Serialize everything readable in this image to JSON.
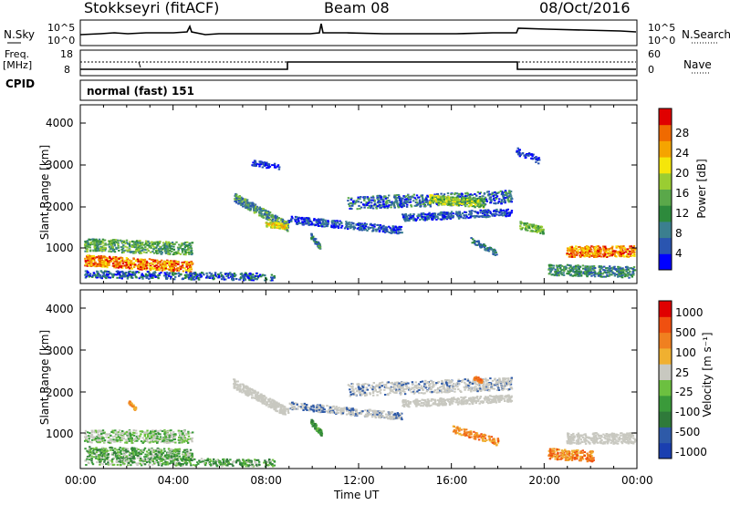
{
  "header": {
    "title": "Stokkseyri (fitACF)",
    "beam": "Beam 08",
    "date": "08/Oct/2016"
  },
  "summary": {
    "nsky_label": "N.Sky",
    "nsearch_label": "N.Search",
    "nsky_ticks": [
      "10^5",
      "10^0"
    ],
    "nsearch_ticks": [
      "10^5",
      "10^0"
    ],
    "freq_label": "Freq.",
    "freq_unit": "[MHz]",
    "freq_ticks": [
      "18",
      "8"
    ],
    "nave_label": "Nave",
    "nave_ticks": [
      "60",
      "0"
    ],
    "cpid_label": "CPID",
    "cpid_value": "normal (fast) 151"
  },
  "chart_data": [
    {
      "type": "heatmap",
      "panel": "power",
      "ylabel": "Slant Range [km]",
      "ylim": [
        180,
        4500
      ],
      "yticks": [
        "4000",
        "3000",
        "2000",
        "1000"
      ],
      "colorbar_label": "Power [dB]",
      "colorbar_ticks": [
        "28",
        "24",
        "20",
        "16",
        "12",
        "8",
        "4"
      ],
      "colors": [
        "#0000ff",
        "#2a55b0",
        "#3b7f8f",
        "#2d8a3c",
        "#5aa84a",
        "#9acd32",
        "#f5e60a",
        "#f5a400",
        "#f06a00",
        "#e00000"
      ],
      "xlim": [
        "00:00",
        "24:00"
      ]
    },
    {
      "type": "heatmap",
      "panel": "velocity",
      "ylabel": "Slant Range [km]",
      "ylim": [
        180,
        4500
      ],
      "yticks": [
        "4000",
        "3000",
        "2000",
        "1000"
      ],
      "colorbar_label": "Velocity [m s⁻¹]",
      "colorbar_ticks": [
        "1000",
        "500",
        "100",
        "25",
        "-25",
        "-100",
        "-500",
        "-1000"
      ],
      "colors": [
        "#1a3fb0",
        "#2e5aa8",
        "#2f7a3a",
        "#3a9a3a",
        "#6cc040",
        "#c8c8c0",
        "#f0b030",
        "#f08020",
        "#f05010",
        "#e00000"
      ],
      "xlim": [
        "00:00",
        "24:00"
      ]
    }
  ],
  "xaxis": {
    "ticks": [
      "00:00",
      "04:00",
      "08:00",
      "12:00",
      "16:00",
      "20:00",
      "00:00"
    ],
    "label": "Time UT"
  }
}
